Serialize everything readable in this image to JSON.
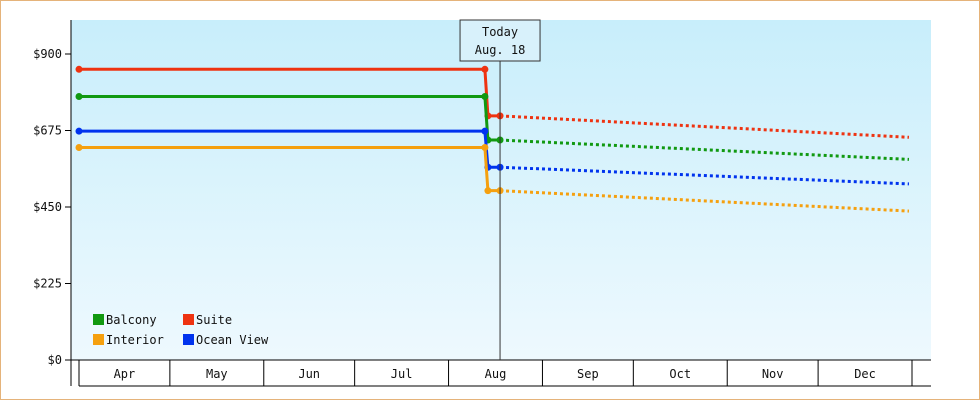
{
  "chart_data": {
    "type": "line",
    "y_ticks": [
      "$0",
      "$225",
      "$450",
      "$675",
      "$900"
    ],
    "ylim": [
      0,
      1000
    ],
    "months": [
      "Apr",
      "May",
      "Jun",
      "Jul",
      "Aug",
      "Sep",
      "Oct",
      "Nov",
      "Dec"
    ],
    "today": {
      "line1": "Today",
      "line2": "Aug. 18"
    },
    "series": [
      {
        "name": "Suite",
        "color": "#ee3311",
        "historical": [
          [
            "2024-04-01",
            855
          ],
          [
            "2024-08-13",
            855
          ],
          [
            "2024-08-14",
            718
          ],
          [
            "2024-08-18",
            718
          ]
        ],
        "forecast": [
          [
            "2024-08-18",
            718
          ],
          [
            "2024-12-31",
            655
          ]
        ]
      },
      {
        "name": "Balcony",
        "color": "#119911",
        "historical": [
          [
            "2024-04-01",
            775
          ],
          [
            "2024-08-13",
            775
          ],
          [
            "2024-08-14",
            647
          ],
          [
            "2024-08-18",
            647
          ]
        ],
        "forecast": [
          [
            "2024-08-18",
            647
          ],
          [
            "2024-12-31",
            590
          ]
        ]
      },
      {
        "name": "Ocean View",
        "color": "#0033ee",
        "historical": [
          [
            "2024-04-01",
            673
          ],
          [
            "2024-08-13",
            673
          ],
          [
            "2024-08-14",
            567
          ],
          [
            "2024-08-18",
            567
          ]
        ],
        "forecast": [
          [
            "2024-08-18",
            567
          ],
          [
            "2024-12-31",
            518
          ]
        ]
      },
      {
        "name": "Interior",
        "color": "#f5a00f",
        "historical": [
          [
            "2024-04-01",
            625
          ],
          [
            "2024-08-13",
            625
          ],
          [
            "2024-08-14",
            498
          ],
          [
            "2024-08-18",
            498
          ]
        ],
        "forecast": [
          [
            "2024-08-18",
            498
          ],
          [
            "2024-12-31",
            438
          ]
        ]
      }
    ],
    "legend": [
      {
        "name": "Balcony",
        "color": "#119911"
      },
      {
        "name": "Suite",
        "color": "#ee3311"
      },
      {
        "name": "Interior",
        "color": "#f5a00f"
      },
      {
        "name": "Ocean View",
        "color": "#0033ee"
      }
    ],
    "legend_position": "bottom-left",
    "grid": false
  }
}
